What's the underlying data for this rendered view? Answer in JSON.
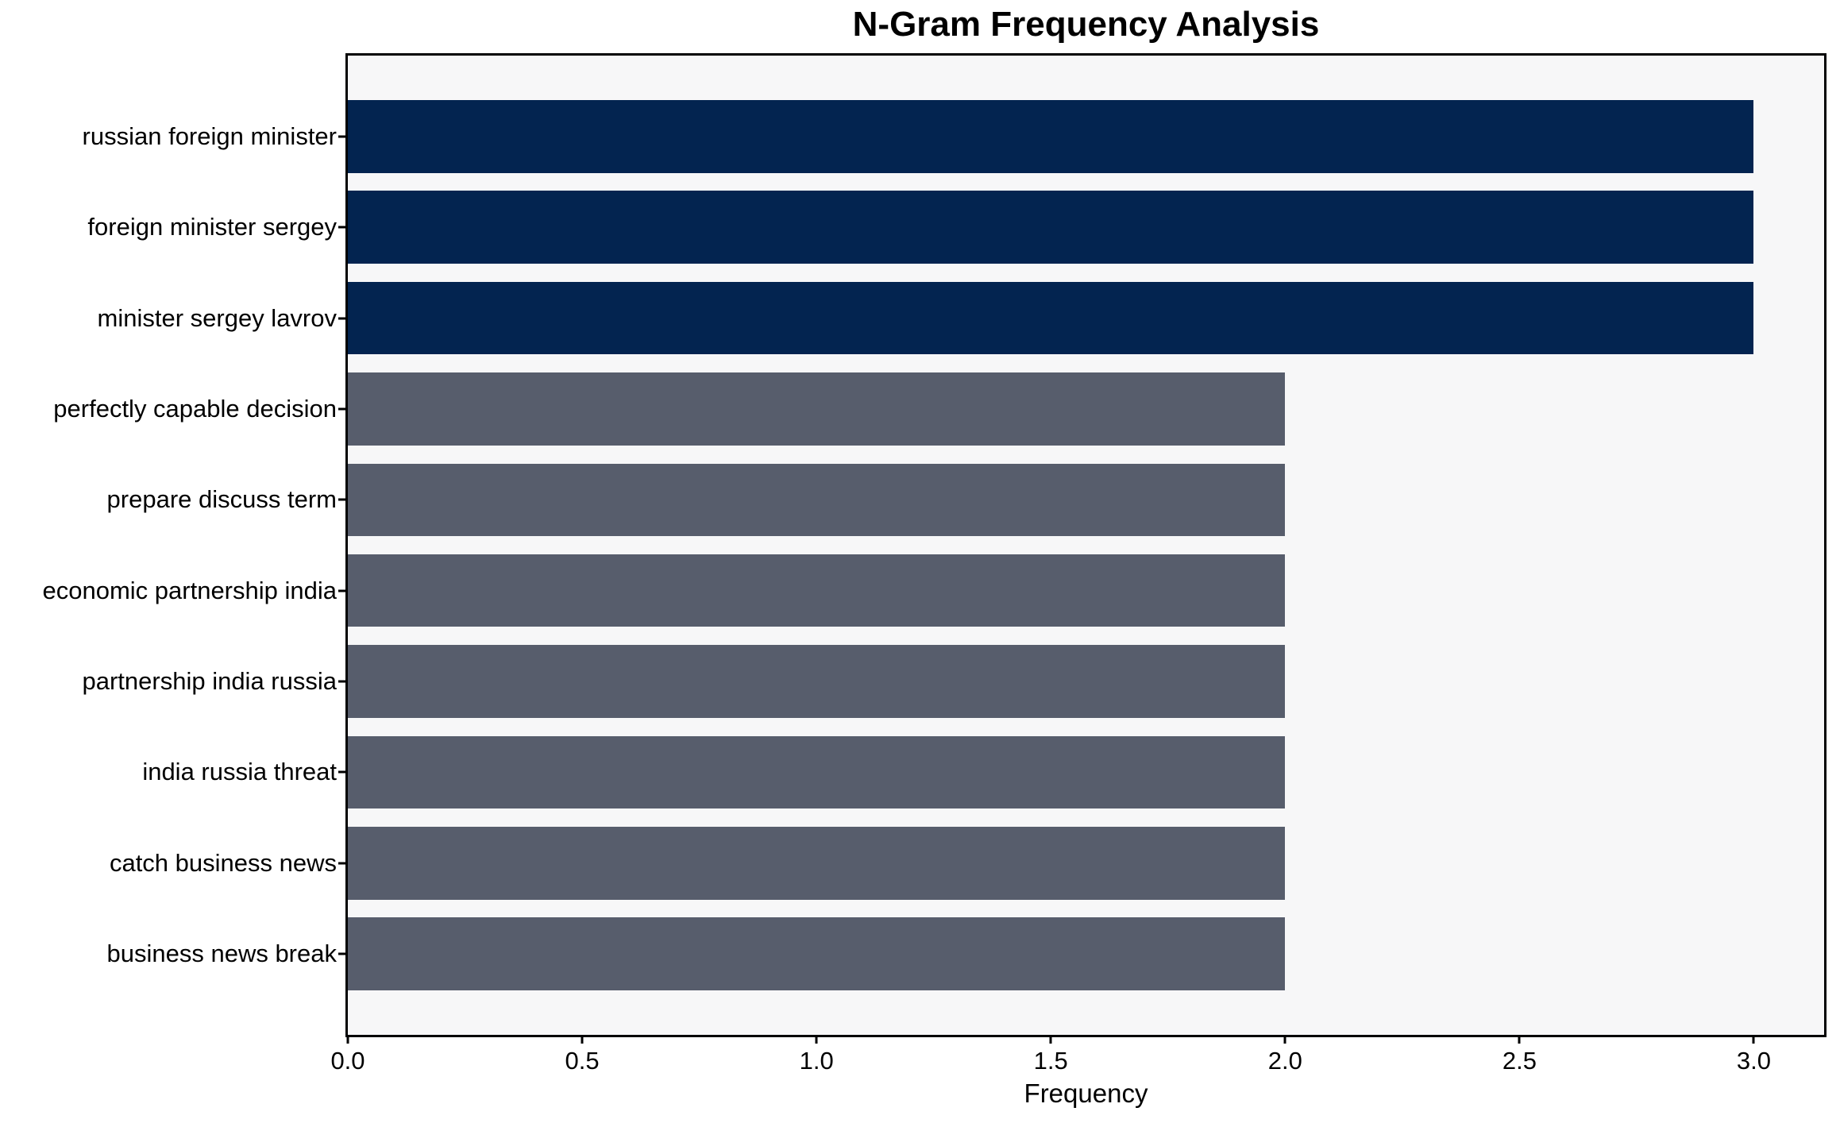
{
  "chart_data": {
    "type": "bar",
    "orientation": "horizontal",
    "title": "N-Gram Frequency Analysis",
    "xlabel": "Frequency",
    "ylabel": "",
    "categories": [
      "russian foreign minister",
      "foreign minister sergey",
      "minister sergey lavrov",
      "perfectly capable decision",
      "prepare discuss term",
      "economic partnership india",
      "partnership india russia",
      "india russia threat",
      "catch business news",
      "business news break"
    ],
    "values": [
      3,
      3,
      3,
      2,
      2,
      2,
      2,
      2,
      2,
      2
    ],
    "xlim": [
      0,
      3.15
    ],
    "xticks": [
      0,
      0.5,
      1,
      1.5,
      2,
      2.5,
      3
    ],
    "xtick_labels": [
      "0.0",
      "0.5",
      "1.0",
      "1.5",
      "2.0",
      "2.5",
      "3.0"
    ],
    "grid": false,
    "legend": false,
    "colors": {
      "bar_high": "#032450",
      "bar_low": "#575d6c",
      "plot_background": "#f7f7f8",
      "figure_background": "#ffffff",
      "spine": "#000000",
      "text": "#000000"
    },
    "color_rule": "bars with value 3 use bar_high, bars with value 2 use bar_low"
  }
}
